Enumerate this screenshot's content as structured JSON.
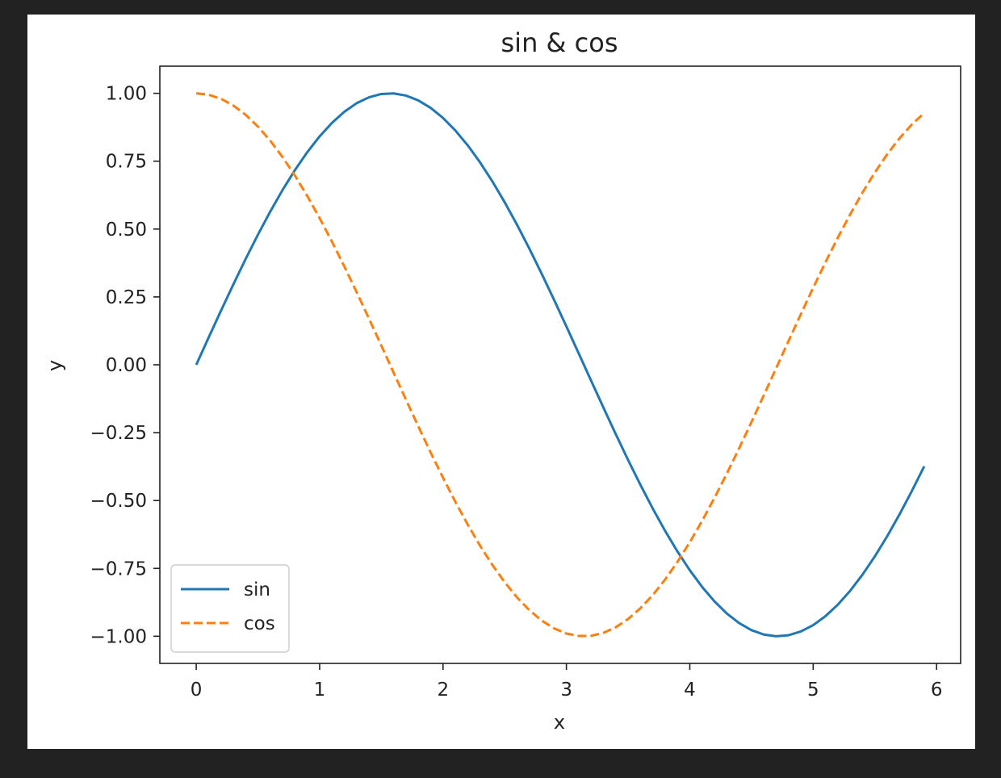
{
  "figure": {
    "background": "#222222",
    "canvas": "#ffffff"
  },
  "chart_data": {
    "type": "line",
    "title": "sin & cos",
    "xlabel": "x",
    "ylabel": "y",
    "xlim": [
      -0.295,
      6.195
    ],
    "ylim": [
      -1.1,
      1.1
    ],
    "xticks": [
      0,
      1,
      2,
      3,
      4,
      5,
      6
    ],
    "xtick_labels": [
      "0",
      "1",
      "2",
      "3",
      "4",
      "5",
      "6"
    ],
    "yticks": [
      -1.0,
      -0.75,
      -0.5,
      -0.25,
      0.0,
      0.25,
      0.5,
      0.75,
      1.0
    ],
    "ytick_labels": [
      "−1.00",
      "−0.75",
      "−0.50",
      "−0.25",
      "0.00",
      "0.25",
      "0.50",
      "0.75",
      "1.00"
    ],
    "grid": false,
    "legend_position": "lower left",
    "x": [
      0.0,
      0.1,
      0.2,
      0.3,
      0.4,
      0.5,
      0.6,
      0.7,
      0.8,
      0.9,
      1.0,
      1.1,
      1.2,
      1.3,
      1.4,
      1.5,
      1.6,
      1.7,
      1.8,
      1.9,
      2.0,
      2.1,
      2.2,
      2.3,
      2.4,
      2.5,
      2.6,
      2.7,
      2.8,
      2.9,
      3.0,
      3.1,
      3.2,
      3.3,
      3.4,
      3.5,
      3.6,
      3.7,
      3.8,
      3.9,
      4.0,
      4.1,
      4.2,
      4.3,
      4.4,
      4.5,
      4.6,
      4.7,
      4.8,
      4.9,
      5.0,
      5.1,
      5.2,
      5.3,
      5.4,
      5.5,
      5.6,
      5.7,
      5.8,
      5.9
    ],
    "series": [
      {
        "name": "sin",
        "color": "#1f77b4",
        "style": "solid",
        "values": [
          0.0,
          0.0998,
          0.1987,
          0.2955,
          0.3894,
          0.4794,
          0.5646,
          0.6442,
          0.7174,
          0.7833,
          0.8415,
          0.8912,
          0.932,
          0.9636,
          0.9854,
          0.9975,
          0.9996,
          0.9917,
          0.9738,
          0.9463,
          0.9093,
          0.8632,
          0.8085,
          0.7457,
          0.6755,
          0.5985,
          0.5155,
          0.4274,
          0.335,
          0.2392,
          0.1411,
          0.0416,
          -0.0584,
          -0.1577,
          -0.2555,
          -0.3508,
          -0.4425,
          -0.5298,
          -0.6119,
          -0.6878,
          -0.7568,
          -0.8183,
          -0.8716,
          -0.9162,
          -0.9516,
          -0.9775,
          -0.9937,
          -0.9999,
          -0.9962,
          -0.9825,
          -0.9589,
          -0.9258,
          -0.8835,
          -0.8323,
          -0.7728,
          -0.7055,
          -0.6313,
          -0.5507,
          -0.4646,
          -0.3739
        ]
      },
      {
        "name": "cos",
        "color": "#ff7f0e",
        "style": "dashed",
        "values": [
          1.0,
          0.995,
          0.9801,
          0.9553,
          0.9211,
          0.8776,
          0.8253,
          0.7648,
          0.6967,
          0.6216,
          0.5403,
          0.4536,
          0.3624,
          0.2675,
          0.17,
          0.0707,
          -0.0292,
          -0.1288,
          -0.2272,
          -0.3233,
          -0.4161,
          -0.5048,
          -0.5885,
          -0.6663,
          -0.7374,
          -0.8011,
          -0.8569,
          -0.904,
          -0.9422,
          -0.971,
          -0.99,
          -0.9991,
          -0.9983,
          -0.9875,
          -0.9668,
          -0.9365,
          -0.8968,
          -0.8481,
          -0.791,
          -0.7259,
          -0.6536,
          -0.5748,
          -0.4903,
          -0.4008,
          -0.3073,
          -0.2108,
          -0.1122,
          -0.0124,
          0.0875,
          0.1865,
          0.2837,
          0.378,
          0.4685,
          0.5544,
          0.6347,
          0.7087,
          0.7756,
          0.8347,
          0.8855,
          0.9275
        ]
      }
    ]
  }
}
